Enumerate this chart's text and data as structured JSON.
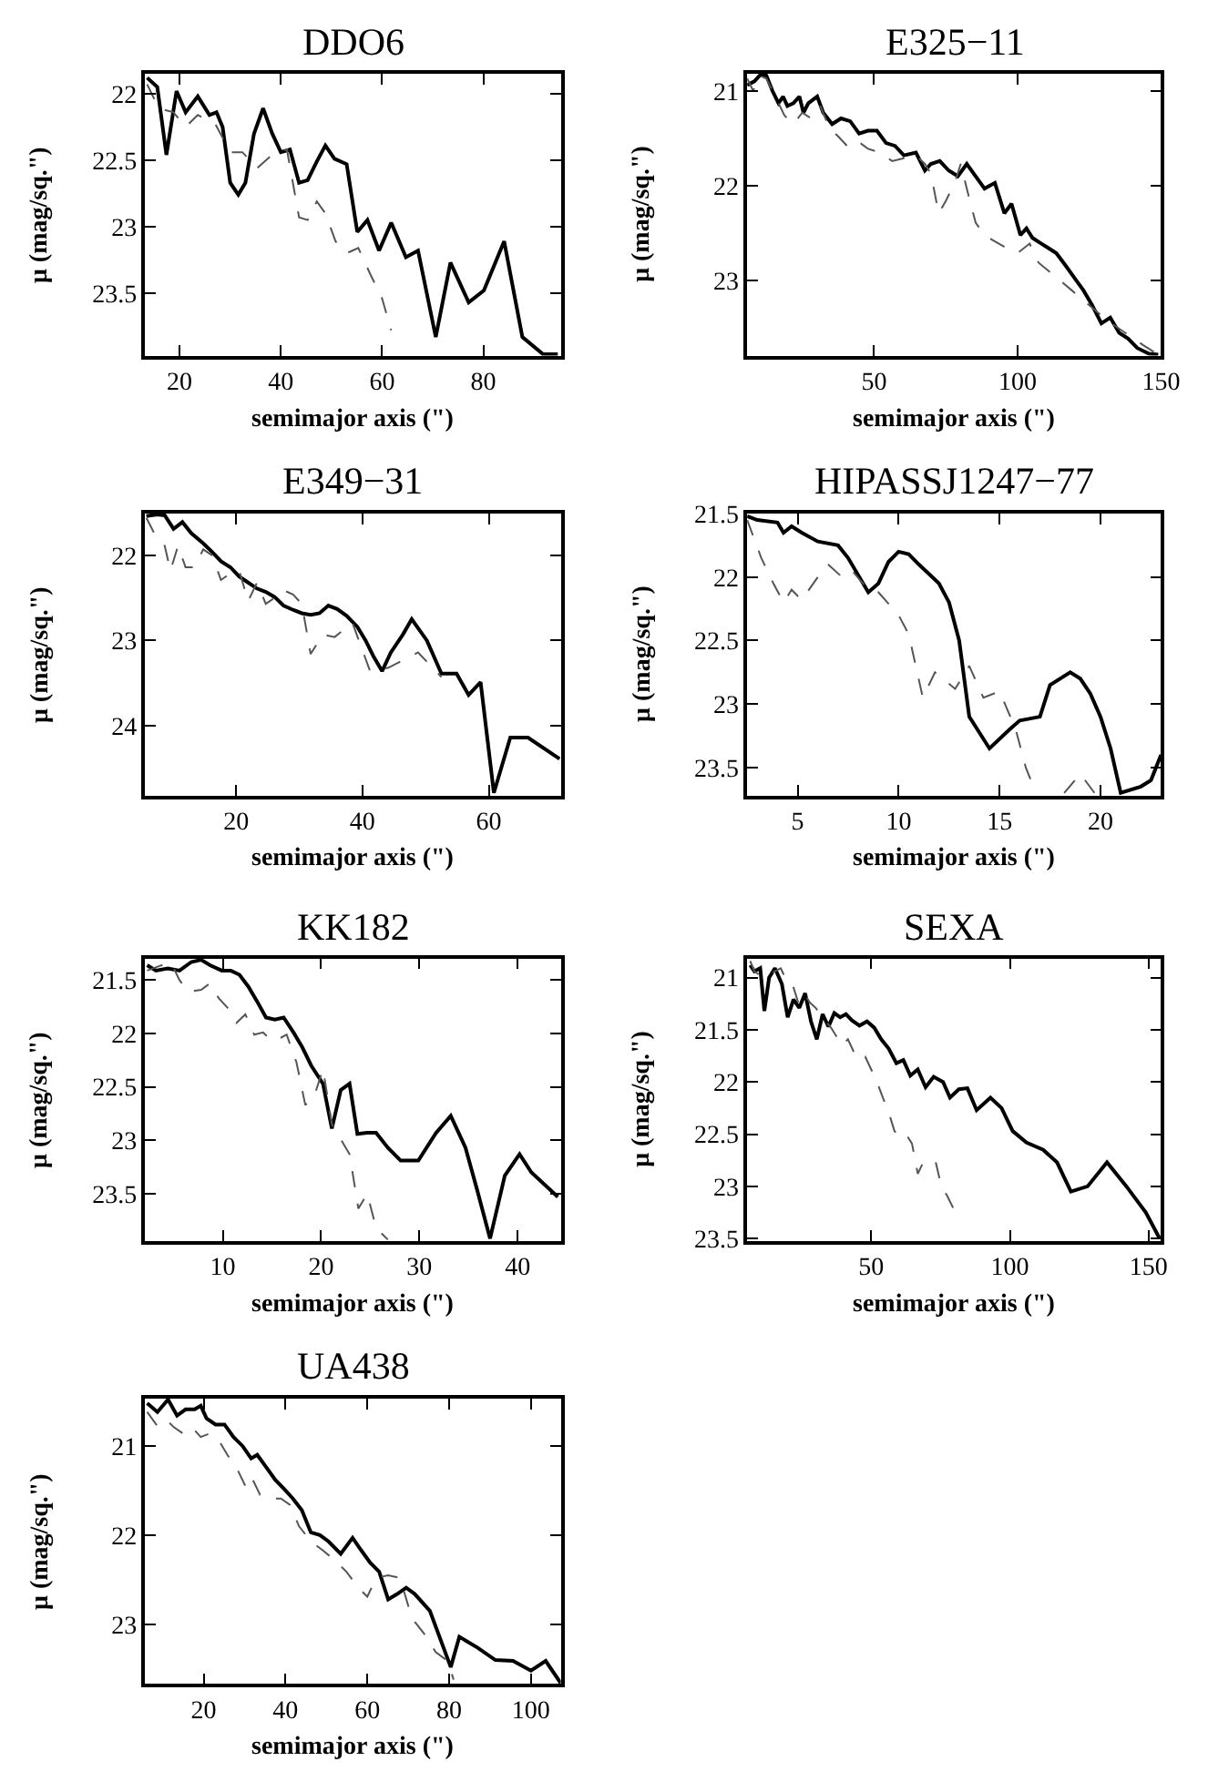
{
  "chart_data": [
    {
      "type": "line",
      "title": "DDO6",
      "xlabel": "semimajor axis (\")",
      "ylabel": "μ (mag/sq.\")",
      "xlim": [
        13.2,
        95.3
      ],
      "ylim": [
        23.97,
        21.85
      ],
      "xticks": [
        20,
        40,
        60,
        80
      ],
      "yticks": [
        22,
        22.5,
        23,
        23.5
      ],
      "series": [
        {
          "color": "#000000",
          "line_style": "solid",
          "x": [
            13.6,
            15.6,
            17.4,
            19.4,
            21.2,
            23.6,
            25.9,
            27.3,
            28.5,
            30.0,
            31.6,
            33.0,
            34.7,
            36.5,
            38.3,
            40.0,
            41.8,
            43.6,
            45.3,
            47.1,
            48.8,
            50.6,
            53.0,
            55.1,
            57.1,
            59.4,
            61.8,
            64.7,
            67.1,
            70.6,
            73.5,
            77.1,
            80.1,
            84.1,
            87.7,
            91.8,
            94.7
          ],
          "values": [
            21.88,
            21.95,
            22.46,
            21.98,
            22.14,
            22.02,
            22.16,
            22.14,
            22.25,
            22.67,
            22.76,
            22.67,
            22.3,
            22.11,
            22.3,
            22.44,
            22.42,
            22.67,
            22.65,
            22.51,
            22.39,
            22.49,
            22.53,
            23.04,
            22.95,
            23.18,
            22.97,
            23.23,
            23.18,
            23.83,
            23.27,
            23.57,
            23.48,
            23.11,
            23.83,
            23.96,
            23.96
          ]
        },
        {
          "color": "#555555",
          "line_style": "dashed",
          "x": [
            13.6,
            15.9,
            18.8,
            21.2,
            23.6,
            27.1,
            30.0,
            32.4,
            35.3,
            38.9,
            41.2,
            43.6,
            45.3,
            47.1,
            48.8,
            50.8,
            53.0,
            55.3,
            57.7,
            60.0,
            61.8
          ],
          "values": [
            21.93,
            22.11,
            22.14,
            22.25,
            22.16,
            22.23,
            22.44,
            22.44,
            22.56,
            22.44,
            22.42,
            22.93,
            22.95,
            22.81,
            22.9,
            23.11,
            23.2,
            23.16,
            23.36,
            23.54,
            23.78
          ]
        }
      ]
    },
    {
      "type": "line",
      "title": "E325−11",
      "xlabel": "semimajor axis (\")",
      "ylabel": "μ (mag/sq.\")",
      "xlim": [
        5.8,
        150
      ],
      "ylim": [
        23.79,
        20.82
      ],
      "xticks": [
        50,
        100,
        150
      ],
      "yticks": [
        21,
        22,
        23
      ],
      "series": [
        {
          "color": "#000000",
          "line_style": "solid",
          "x": [
            5.8,
            8.3,
            10.4,
            12.5,
            14.6,
            16.7,
            18.3,
            19.8,
            21.9,
            24.0,
            25.4,
            27.1,
            30.2,
            32.3,
            35.4,
            38.5,
            41.7,
            44.8,
            47.9,
            51.0,
            54.2,
            57.3,
            60.4,
            64.6,
            67.7,
            69.8,
            72.9,
            76.0,
            79.2,
            82.3,
            85.4,
            88.5,
            92.1,
            95.4,
            97.9,
            101.0,
            103.1,
            105.2,
            108.3,
            110.4,
            113.5,
            116.7,
            119.8,
            122.9,
            126.0,
            129.2,
            132.3,
            135.4,
            138.5,
            141.7,
            145.8,
            149
          ],
          "values": [
            20.94,
            20.9,
            20.83,
            20.84,
            21.0,
            21.13,
            21.06,
            21.16,
            21.13,
            21.06,
            21.23,
            21.13,
            21.06,
            21.23,
            21.35,
            21.29,
            21.32,
            21.45,
            21.42,
            21.42,
            21.55,
            21.58,
            21.68,
            21.65,
            21.84,
            21.77,
            21.74,
            21.84,
            21.9,
            21.77,
            21.9,
            22.03,
            21.97,
            22.29,
            22.19,
            22.52,
            22.45,
            22.55,
            22.61,
            22.65,
            22.71,
            22.84,
            22.97,
            23.1,
            23.26,
            23.45,
            23.39,
            23.55,
            23.61,
            23.71,
            23.77,
            23.78
          ]
        },
        {
          "color": "#555555",
          "line_style": "dashed",
          "x": [
            5.8,
            7.9,
            10.0,
            12.5,
            15.6,
            18.8,
            21.9,
            25.0,
            28.1,
            31.3,
            34.4,
            37.5,
            40.6,
            43.8,
            47.9,
            52.1,
            56.3,
            60.4,
            64.6,
            67.7,
            69.8,
            72.5,
            75.0,
            78.1,
            80.2,
            82.3,
            85.4,
            88.5,
            91.7,
            95.8,
            100.0,
            104.2,
            107.3,
            112.5,
            118.8,
            125.0,
            131.3,
            137.5,
            143.8,
            149
          ],
          "values": [
            20.87,
            21.0,
            20.84,
            20.87,
            21.06,
            21.26,
            21.35,
            21.23,
            21.29,
            21.16,
            21.39,
            21.48,
            21.58,
            21.52,
            21.61,
            21.65,
            21.74,
            21.71,
            21.68,
            21.77,
            21.87,
            22.29,
            22.16,
            21.97,
            21.77,
            22.03,
            22.39,
            22.52,
            22.58,
            22.65,
            22.71,
            22.61,
            22.81,
            22.94,
            23.1,
            23.26,
            23.42,
            23.55,
            23.68,
            23.78
          ]
        }
      ]
    },
    {
      "type": "line",
      "title": "E349−31",
      "xlabel": "semimajor axis (\")",
      "ylabel": "μ (mag/sq.\")",
      "xlim": [
        5.6,
        71.4
      ],
      "ylim": [
        24.82,
        21.51
      ],
      "xticks": [
        20,
        40,
        60
      ],
      "yticks": [
        22,
        23,
        24
      ],
      "series": [
        {
          "color": "#000000",
          "line_style": "solid",
          "x": [
            5.8,
            7.5,
            8.7,
            10.1,
            11.5,
            12.9,
            14.8,
            16.2,
            17.6,
            19.1,
            20.5,
            21.9,
            23.3,
            24.7,
            26.1,
            27.5,
            29.0,
            30.4,
            31.8,
            33.2,
            34.6,
            36.0,
            37.5,
            39.2,
            40.5,
            41.7,
            43.1,
            44.5,
            46.4,
            47.8,
            50.2,
            52.5,
            54.9,
            56.8,
            58.7,
            60.8,
            63.4,
            66.2,
            71.2
          ],
          "values": [
            21.54,
            21.52,
            21.53,
            21.69,
            21.61,
            21.74,
            21.86,
            21.96,
            22.07,
            22.14,
            22.25,
            22.32,
            22.39,
            22.43,
            22.49,
            22.59,
            22.64,
            22.68,
            22.7,
            22.68,
            22.59,
            22.63,
            22.71,
            22.84,
            23.0,
            23.18,
            23.36,
            23.14,
            22.93,
            22.75,
            23.0,
            23.39,
            23.39,
            23.64,
            23.49,
            24.79,
            24.14,
            24.14,
            24.39
          ]
        },
        {
          "color": "#555555",
          "line_style": "dashed",
          "x": [
            5.8,
            7.1,
            8.7,
            9.6,
            10.8,
            12.0,
            13.4,
            14.8,
            16.2,
            17.6,
            19.1,
            20.5,
            21.9,
            23.3,
            24.7,
            26.1,
            27.5,
            29.0,
            30.4,
            31.8,
            33.7,
            35.6,
            38.4,
            41.2,
            44.1,
            48.8,
            52.5
          ],
          "values": [
            21.56,
            21.75,
            21.89,
            22.18,
            21.89,
            22.14,
            22.14,
            21.93,
            22.0,
            22.29,
            22.21,
            22.18,
            22.54,
            22.32,
            22.57,
            22.5,
            22.41,
            22.46,
            22.57,
            23.16,
            22.93,
            22.96,
            22.79,
            23.36,
            23.32,
            23.14,
            23.43
          ]
        }
      ]
    },
    {
      "type": "line",
      "title": "HIPASSJ1247−77",
      "xlabel": "semimajor axis (\")",
      "ylabel": "μ (mag/sq.\")",
      "xlim": [
        2.5,
        23.0
      ],
      "ylim": [
        23.72,
        21.5
      ],
      "xticks": [
        5,
        10,
        15,
        20
      ],
      "yticks": [
        21.5,
        22,
        22.5,
        23,
        23.5
      ],
      "series": [
        {
          "color": "#000000",
          "line_style": "solid",
          "x": [
            2.5,
            3,
            4,
            4.3,
            4.7,
            5.2,
            6,
            7,
            7.5,
            8.5,
            9,
            9.5,
            10,
            10.5,
            11,
            12,
            12.5,
            13,
            13.5,
            14.5,
            15.5,
            16,
            17,
            17.5,
            18.5,
            19,
            19.5,
            20,
            20.5,
            21,
            22,
            22.5,
            23
          ],
          "values": [
            21.52,
            21.55,
            21.57,
            21.65,
            21.6,
            21.65,
            21.72,
            21.75,
            21.85,
            22.12,
            22.05,
            21.88,
            21.8,
            21.82,
            21.9,
            22.05,
            22.2,
            22.5,
            23.1,
            23.35,
            23.2,
            23.13,
            23.1,
            22.85,
            22.75,
            22.8,
            22.92,
            23.1,
            23.35,
            23.7,
            23.65,
            23.6,
            23.4
          ]
        },
        {
          "color": "#555555",
          "line_style": "dashed",
          "x": [
            2.5,
            3.2,
            3.8,
            4.3,
            4.7,
            5.2,
            6,
            6.5,
            7.2,
            7.7,
            8.5,
            9,
            10,
            10.5,
            11.2,
            11.8,
            12.8,
            13.5,
            14.2,
            15,
            15.8,
            16.3,
            16.8,
            17.5,
            18.2,
            19,
            19.7
          ],
          "values": [
            21.55,
            21.85,
            22.05,
            22.2,
            22.1,
            22.18,
            22.0,
            21.9,
            22.0,
            21.95,
            22.1,
            22.12,
            22.3,
            22.45,
            22.95,
            22.75,
            22.88,
            22.7,
            22.95,
            22.9,
            23.2,
            23.5,
            23.7,
            null,
            23.7,
            23.55,
            23.7
          ]
        }
      ]
    },
    {
      "type": "line",
      "title": "KK182",
      "xlabel": "semimajor axis (\")",
      "ylabel": "μ (mag/sq.\")",
      "xlim": [
        2.1,
        44.4
      ],
      "ylim": [
        23.94,
        21.3
      ],
      "xticks": [
        10,
        20,
        30,
        40
      ],
      "yticks": [
        21.5,
        22,
        22.5,
        23,
        23.5
      ],
      "series": [
        {
          "color": "#000000",
          "line_style": "solid",
          "x": [
            2.3,
            3.2,
            4.4,
            5.6,
            6.8,
            7.8,
            8.7,
            9.9,
            10.8,
            11.7,
            12.6,
            13.5,
            14.4,
            15.3,
            16.2,
            17.2,
            18.1,
            19.0,
            20.2,
            21.1,
            22.0,
            22.9,
            23.7,
            24.7,
            25.6,
            26.8,
            28.1,
            29.9,
            31.7,
            33.2,
            34.7,
            35.9,
            37.2,
            38.7,
            40.2,
            41.4,
            44.1
          ],
          "values": [
            21.36,
            21.41,
            21.39,
            21.41,
            21.33,
            21.31,
            21.36,
            21.41,
            21.41,
            21.45,
            21.56,
            21.7,
            21.85,
            21.87,
            21.85,
            21.99,
            22.13,
            22.3,
            22.47,
            22.89,
            22.53,
            22.47,
            22.94,
            22.93,
            22.93,
            23.07,
            23.19,
            23.19,
            22.93,
            22.77,
            23.07,
            23.47,
            23.92,
            23.33,
            23.13,
            23.3,
            23.53
          ]
        },
        {
          "color": "#555555",
          "line_style": "dashed",
          "x": [
            2.3,
            3.5,
            4.7,
            5.6,
            6.5,
            7.8,
            8.7,
            9.6,
            10.5,
            11.4,
            12.3,
            13.2,
            14.1,
            15.0,
            15.9,
            16.5,
            17.5,
            18.4,
            19.3,
            20.2,
            21.1,
            22.0,
            22.9,
            23.8,
            24.7,
            25.6,
            26.8
          ],
          "values": [
            21.41,
            21.37,
            21.33,
            21.5,
            21.61,
            21.59,
            21.53,
            21.67,
            21.76,
            21.9,
            21.82,
            22.01,
            21.99,
            22.07,
            22.04,
            22.01,
            22.27,
            22.67,
            22.59,
            22.33,
            22.85,
            22.99,
            23.13,
            23.64,
            23.5,
            23.82,
            23.93
          ]
        }
      ]
    },
    {
      "type": "line",
      "title": "SEXA",
      "xlabel": "semimajor axis (\")",
      "ylabel": "μ (mag/sq.\")",
      "xlim": [
        5.3,
        154.5
      ],
      "ylim": [
        23.52,
        20.82
      ],
      "xticks": [
        50,
        100,
        150
      ],
      "yticks": [
        21,
        21.5,
        22,
        22.5,
        23,
        23.5
      ],
      "series": [
        {
          "color": "#000000",
          "line_style": "solid",
          "x": [
            6.4,
            7.9,
            10.0,
            11.5,
            13.2,
            15.3,
            17.8,
            19.9,
            22.0,
            24.1,
            26.2,
            28.3,
            30.4,
            32.5,
            34.6,
            36.7,
            38.8,
            40.9,
            43.1,
            45.8,
            48.5,
            51.1,
            53.6,
            56.3,
            59.1,
            61.6,
            64.1,
            66.8,
            69.6,
            72.5,
            75.9,
            78.4,
            81.6,
            84.7,
            88,
            93,
            97,
            101,
            106,
            112,
            117,
            122,
            128,
            135,
            142,
            149,
            154
          ],
          "values": [
            20.88,
            20.94,
            20.91,
            21.32,
            21.0,
            20.91,
            21.06,
            21.38,
            21.21,
            21.29,
            21.15,
            21.42,
            21.59,
            21.35,
            21.47,
            21.34,
            21.38,
            21.35,
            21.41,
            21.46,
            21.42,
            21.48,
            21.59,
            21.68,
            21.82,
            21.79,
            21.94,
            21.88,
            22.05,
            21.95,
            22.0,
            22.15,
            22.07,
            22.06,
            22.27,
            22.15,
            22.25,
            22.47,
            22.58,
            22.65,
            22.77,
            23.05,
            23.0,
            22.77,
            23.0,
            23.25,
            23.5
          ]
        },
        {
          "color": "#555555",
          "line_style": "dashed",
          "x": [
            6.4,
            7.9,
            11.1,
            13.2,
            15.3,
            17.4,
            19.5,
            21.6,
            23.7,
            25.8,
            27.9,
            30.0,
            33.2,
            35.3,
            37.4,
            39.5,
            41.6,
            43.7,
            45.8,
            47.9,
            50.0,
            52.1,
            54.2,
            56.3,
            58.4,
            60.5,
            62.6,
            64.7,
            66.8,
            68.9,
            71.1,
            73.2,
            75.3,
            77.4,
            80.5
          ],
          "values": [
            20.84,
            20.94,
            21.0,
            20.97,
            20.94,
            20.91,
            21.03,
            21.06,
            21.24,
            21.15,
            21.24,
            21.29,
            21.41,
            21.47,
            21.56,
            21.65,
            21.59,
            21.71,
            21.79,
            21.76,
            21.88,
            22.0,
            22.15,
            22.29,
            22.47,
            22.53,
            22.5,
            22.59,
            22.88,
            22.76,
            22.76,
            22.76,
            23.0,
            23.09,
            23.26
          ]
        }
      ]
    },
    {
      "type": "line",
      "title": "UA438",
      "xlabel": "semimajor axis (\")",
      "ylabel": "μ (mag/sq.\")",
      "xlim": [
        5.7,
        107.3
      ],
      "ylim": [
        23.67,
        20.47
      ],
      "xticks": [
        20,
        40,
        60,
        80,
        100
      ],
      "yticks": [
        21,
        22,
        23
      ],
      "series": [
        {
          "color": "#000000",
          "line_style": "solid",
          "x": [
            6.2,
            8.7,
            11.3,
            13.5,
            15.6,
            17.8,
            19.3,
            20.7,
            22.9,
            25.1,
            27.3,
            29.5,
            31.6,
            33.1,
            35.3,
            37.5,
            39.6,
            41.8,
            44.0,
            46.2,
            48.4,
            50.5,
            53.5,
            56.4,
            58.5,
            60.7,
            62.9,
            65.1,
            67.3,
            69.5,
            71.6,
            75.3,
            80.4,
            82.5,
            86.9,
            91.3,
            95.6,
            100,
            103.6,
            107.3
          ],
          "values": [
            20.52,
            20.62,
            20.48,
            20.66,
            20.59,
            20.59,
            20.55,
            20.69,
            20.76,
            20.76,
            20.9,
            21.0,
            21.14,
            21.1,
            21.24,
            21.38,
            21.48,
            21.59,
            21.72,
            21.97,
            22.0,
            22.07,
            22.21,
            22.03,
            22.17,
            22.31,
            22.41,
            22.72,
            22.66,
            22.59,
            22.66,
            22.85,
            23.48,
            23.14,
            23.26,
            23.4,
            23.41,
            23.52,
            23.41,
            23.66
          ]
        },
        {
          "color": "#555555",
          "line_style": "dashed",
          "x": [
            6.2,
            8.4,
            10.5,
            12.7,
            14.9,
            17.1,
            19.3,
            21.5,
            23.6,
            25.8,
            28.0,
            30.2,
            31.6,
            33.8,
            36.0,
            38.9,
            41.1,
            43.3,
            46.2,
            49.1,
            52.0,
            54.9,
            57.8,
            60.0,
            62.2,
            65.1,
            68.0,
            70.9,
            73.8,
            76.7,
            79.6,
            81.1
          ],
          "values": [
            20.62,
            20.76,
            20.69,
            20.79,
            20.86,
            20.79,
            20.9,
            20.86,
            20.93,
            21.1,
            21.24,
            21.45,
            21.34,
            21.55,
            21.59,
            21.59,
            21.66,
            21.9,
            22.07,
            22.17,
            22.28,
            22.41,
            22.59,
            22.69,
            22.48,
            22.45,
            22.48,
            22.93,
            23.1,
            23.31,
            23.41,
            23.62
          ]
        }
      ]
    }
  ]
}
